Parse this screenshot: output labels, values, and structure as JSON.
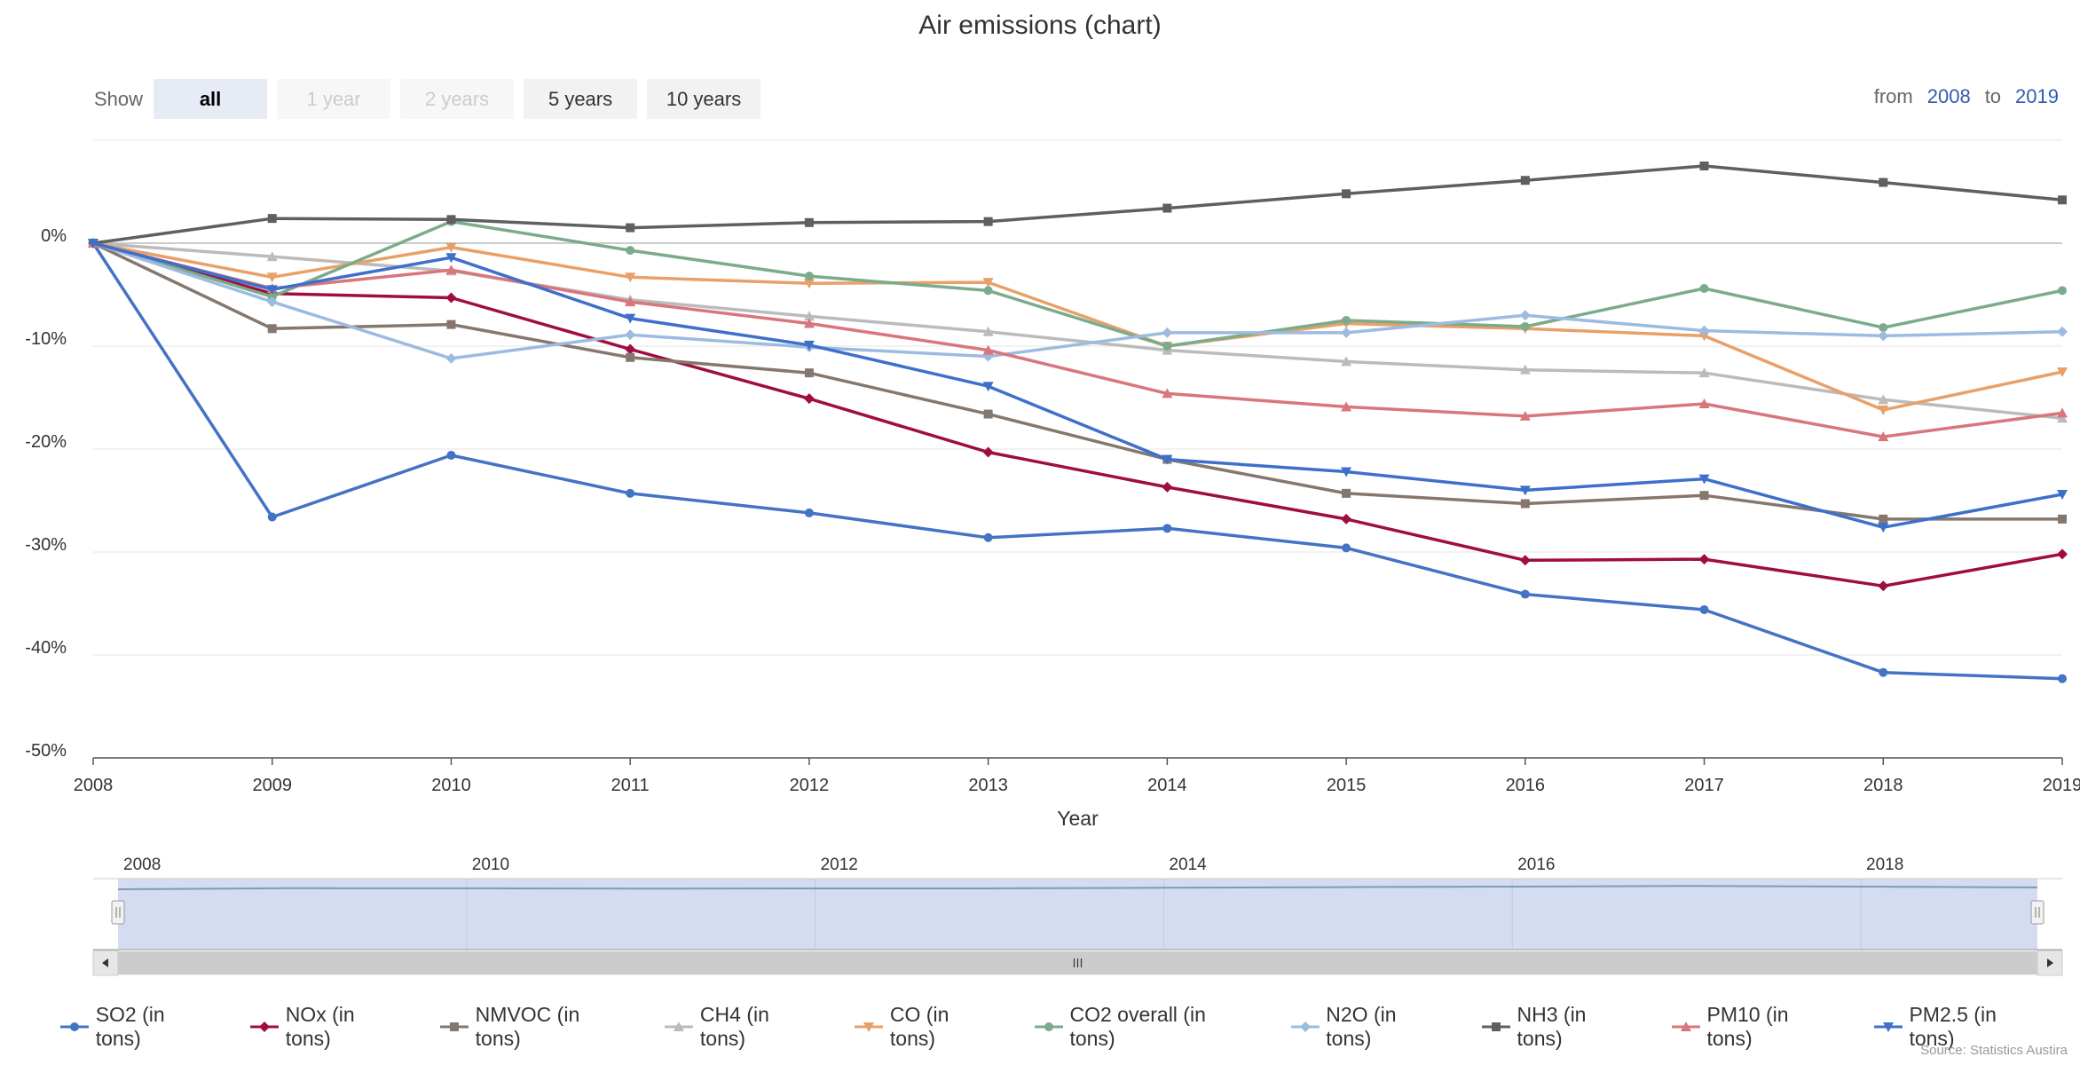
{
  "chart_data": {
    "type": "line",
    "title": "Air emissions (chart)",
    "xlabel": "Year",
    "ylabel": "",
    "x": [
      2008,
      2009,
      2010,
      2011,
      2012,
      2013,
      2014,
      2015,
      2016,
      2017,
      2018,
      2019
    ],
    "ylim": [
      -50,
      10
    ],
    "yticks": [
      "0%",
      "-10%",
      "-20%",
      "-30%",
      "-40%",
      "-50%"
    ],
    "ytick_values": [
      0,
      -10,
      -20,
      -30,
      -40,
      -50
    ],
    "grid": true,
    "legend_position": "bottom",
    "series": [
      {
        "name": "SO2 (in tons)",
        "color": "#4472c4",
        "marker": "circle",
        "values": [
          0,
          -26.6,
          -20.6,
          -24.3,
          -26.2,
          -28.6,
          -27.7,
          -29.6,
          -34.1,
          -35.6,
          -41.7,
          -42.3
        ]
      },
      {
        "name": "NOx (in tons)",
        "color": "#a00d3f",
        "marker": "diamond",
        "values": [
          0,
          -4.9,
          -5.3,
          -10.3,
          -15.1,
          -20.3,
          -23.7,
          -26.8,
          -30.8,
          -30.7,
          -33.3,
          -30.2
        ]
      },
      {
        "name": "NMVOC (in tons)",
        "color": "#85776d",
        "marker": "square",
        "values": [
          0,
          -8.3,
          -7.9,
          -11.1,
          -12.6,
          -16.6,
          -21.0,
          -24.3,
          -25.3,
          -24.5,
          -26.8,
          -26.8
        ]
      },
      {
        "name": "CH4 (in tons)",
        "color": "#bbbbbb",
        "marker": "triangle",
        "values": [
          0,
          -1.3,
          -2.7,
          -5.5,
          -7.1,
          -8.6,
          -10.4,
          -11.5,
          -12.3,
          -12.6,
          -15.2,
          -17.0
        ]
      },
      {
        "name": "CO (in tons)",
        "color": "#e8a068",
        "marker": "triangle-down",
        "values": [
          0,
          -3.3,
          -0.4,
          -3.3,
          -3.9,
          -3.8,
          -10.0,
          -7.8,
          -8.3,
          -9.0,
          -16.2,
          -12.5
        ]
      },
      {
        "name": "CO2 overall (in tons)",
        "color": "#7aab8a",
        "marker": "circle",
        "values": [
          0,
          -5.2,
          2.1,
          -0.7,
          -3.2,
          -4.6,
          -10.0,
          -7.5,
          -8.1,
          -4.4,
          -8.2,
          -4.6
        ]
      },
      {
        "name": "N2O (in tons)",
        "color": "#9dbbe0",
        "marker": "diamond",
        "values": [
          0,
          -5.7,
          -11.2,
          -8.9,
          -10.1,
          -11.0,
          -8.7,
          -8.7,
          -7.0,
          -8.5,
          -9.0,
          -8.6
        ]
      },
      {
        "name": "NH3 (in tons)",
        "color": "#5f5f5f",
        "marker": "square",
        "values": [
          0,
          2.4,
          2.3,
          1.5,
          2.0,
          2.1,
          3.4,
          4.8,
          6.1,
          7.5,
          5.9,
          4.2
        ]
      },
      {
        "name": "PM10 (in tons)",
        "color": "#d9767c",
        "marker": "triangle",
        "values": [
          0,
          -4.4,
          -2.6,
          -5.7,
          -7.8,
          -10.4,
          -14.6,
          -15.9,
          -16.8,
          -15.6,
          -18.8,
          -16.5
        ]
      },
      {
        "name": "PM2.5 (in tons)",
        "color": "#3e6fcb",
        "marker": "triangle-down",
        "values": [
          0,
          -4.5,
          -1.4,
          -7.3,
          -9.9,
          -13.9,
          -21.0,
          -22.2,
          -24.0,
          -22.9,
          -27.6,
          -24.4
        ]
      }
    ]
  },
  "controls": {
    "show_label": "Show",
    "buttons": [
      "all",
      "1 year",
      "2 years",
      "5 years",
      "10 years"
    ],
    "selected_button": "all",
    "disabled_buttons": [
      "1 year",
      "2 years"
    ],
    "from_label": "from",
    "from_value": "2008",
    "to_label": "to",
    "to_value": "2019"
  },
  "navigator": {
    "labels": [
      "2008",
      "2010",
      "2012",
      "2014",
      "2016",
      "2018"
    ]
  },
  "credits": "Source: Statistics Austira"
}
